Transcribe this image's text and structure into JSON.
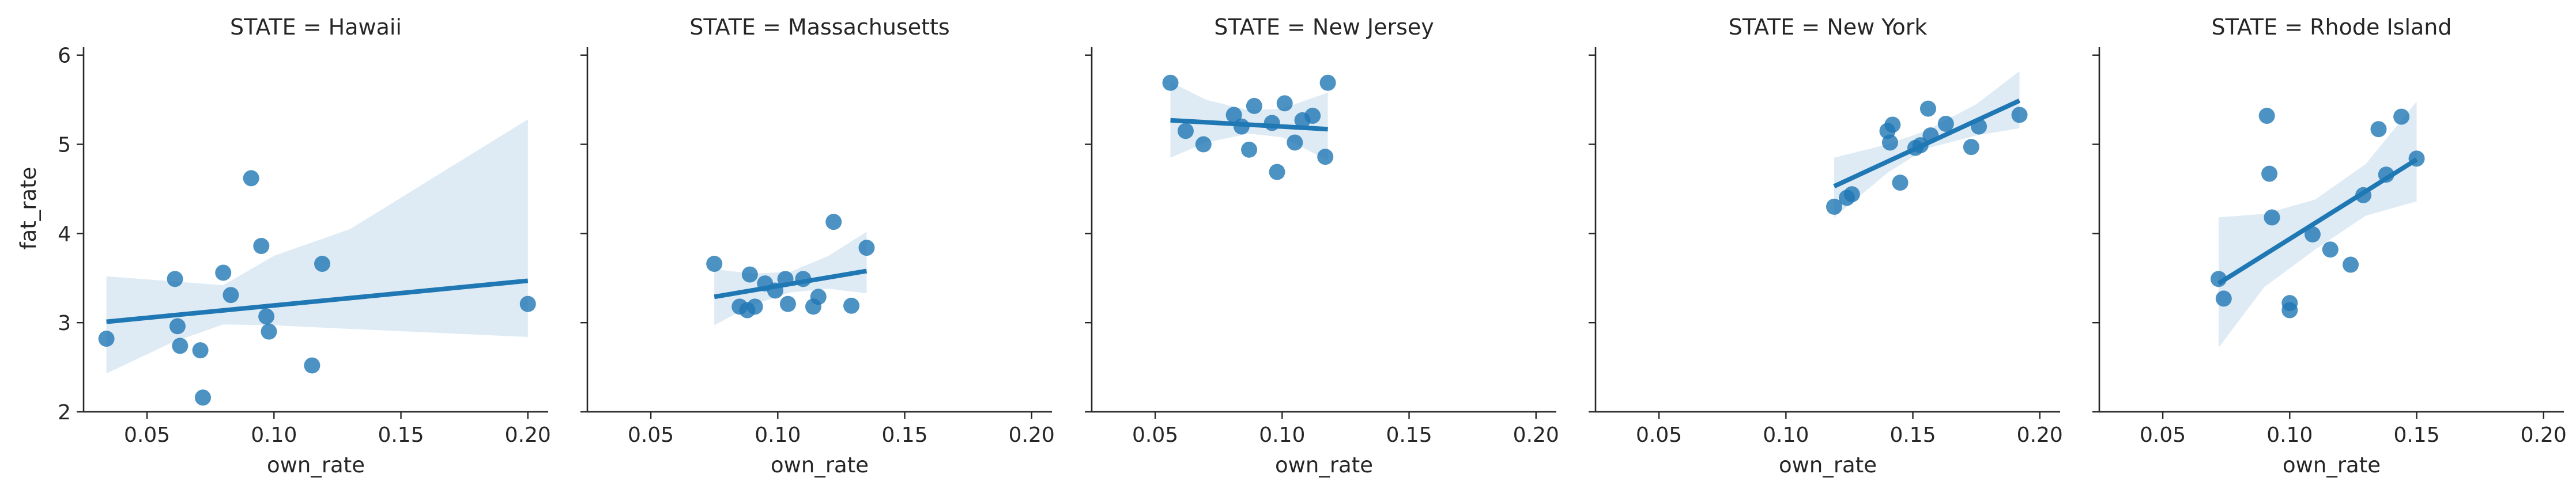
{
  "chart_data": {
    "type": "scatter",
    "subtype": "facet-grid-regression",
    "shared_ylabel": "fat_rate",
    "shared_xlabel": "own_rate",
    "xlim": [
      0.025,
      0.208
    ],
    "ylim": [
      2.0,
      6.05
    ],
    "xticks": [
      0.05,
      0.1,
      0.15,
      0.2
    ],
    "xtick_labels": [
      "0.05",
      "0.10",
      "0.15",
      "0.20"
    ],
    "yticks": [
      2,
      3,
      4,
      5,
      6
    ],
    "ytick_labels": [
      "2",
      "3",
      "4",
      "5",
      "6"
    ],
    "grid": false,
    "colors": {
      "points": "#1f77b4",
      "line": "#1f77b4",
      "band": "#1f77b4"
    },
    "facets": [
      {
        "title": "STATE = Hawaii",
        "points": [
          [
            0.034,
            2.82
          ],
          [
            0.061,
            3.49
          ],
          [
            0.062,
            2.96
          ],
          [
            0.063,
            2.74
          ],
          [
            0.071,
            2.69
          ],
          [
            0.072,
            2.16
          ],
          [
            0.08,
            3.56
          ],
          [
            0.083,
            3.31
          ],
          [
            0.091,
            4.62
          ],
          [
            0.095,
            3.86
          ],
          [
            0.097,
            3.07
          ],
          [
            0.098,
            2.9
          ],
          [
            0.115,
            2.52
          ],
          [
            0.119,
            3.66
          ],
          [
            0.2,
            3.21
          ]
        ],
        "fit": {
          "x": [
            0.034,
            0.2
          ],
          "y": [
            3.01,
            3.47
          ]
        },
        "ci_upper": [
          [
            0.034,
            3.52
          ],
          [
            0.08,
            3.42
          ],
          [
            0.1,
            3.75
          ],
          [
            0.13,
            4.05
          ],
          [
            0.2,
            5.28
          ]
        ],
        "ci_lower": [
          [
            0.034,
            2.43
          ],
          [
            0.06,
            2.78
          ],
          [
            0.08,
            2.98
          ],
          [
            0.1,
            2.97
          ],
          [
            0.13,
            2.93
          ],
          [
            0.2,
            2.84
          ]
        ]
      },
      {
        "title": "STATE = Massachusetts",
        "points": [
          [
            0.075,
            3.66
          ],
          [
            0.085,
            3.18
          ],
          [
            0.088,
            3.14
          ],
          [
            0.089,
            3.54
          ],
          [
            0.091,
            3.18
          ],
          [
            0.095,
            3.44
          ],
          [
            0.099,
            3.36
          ],
          [
            0.103,
            3.49
          ],
          [
            0.104,
            3.21
          ],
          [
            0.11,
            3.49
          ],
          [
            0.114,
            3.18
          ],
          [
            0.116,
            3.29
          ],
          [
            0.122,
            4.13
          ],
          [
            0.129,
            3.19
          ],
          [
            0.135,
            3.84
          ]
        ],
        "fit": {
          "x": [
            0.075,
            0.135
          ],
          "y": [
            3.29,
            3.58
          ]
        },
        "ci_upper": [
          [
            0.075,
            3.6
          ],
          [
            0.09,
            3.55
          ],
          [
            0.105,
            3.57
          ],
          [
            0.12,
            3.75
          ],
          [
            0.135,
            4.02
          ]
        ],
        "ci_lower": [
          [
            0.075,
            2.97
          ],
          [
            0.09,
            3.2
          ],
          [
            0.105,
            3.34
          ],
          [
            0.12,
            3.38
          ],
          [
            0.135,
            3.33
          ]
        ]
      },
      {
        "title": "STATE = New Jersey",
        "points": [
          [
            0.056,
            5.69
          ],
          [
            0.062,
            5.15
          ],
          [
            0.069,
            5.0
          ],
          [
            0.081,
            5.33
          ],
          [
            0.084,
            5.2
          ],
          [
            0.087,
            4.94
          ],
          [
            0.089,
            5.43
          ],
          [
            0.096,
            5.24
          ],
          [
            0.098,
            4.69
          ],
          [
            0.101,
            5.46
          ],
          [
            0.105,
            5.02
          ],
          [
            0.108,
            5.27
          ],
          [
            0.112,
            5.32
          ],
          [
            0.117,
            4.86
          ],
          [
            0.118,
            5.69
          ]
        ],
        "fit": {
          "x": [
            0.056,
            0.118
          ],
          "y": [
            5.27,
            5.17
          ]
        },
        "ci_upper": [
          [
            0.056,
            5.7
          ],
          [
            0.07,
            5.5
          ],
          [
            0.087,
            5.38
          ],
          [
            0.1,
            5.4
          ],
          [
            0.118,
            5.58
          ]
        ],
        "ci_lower": [
          [
            0.056,
            4.85
          ],
          [
            0.07,
            5.02
          ],
          [
            0.087,
            5.12
          ],
          [
            0.1,
            5.08
          ],
          [
            0.118,
            4.82
          ]
        ]
      },
      {
        "title": "STATE = New York",
        "points": [
          [
            0.119,
            4.3
          ],
          [
            0.124,
            4.4
          ],
          [
            0.126,
            4.44
          ],
          [
            0.14,
            5.15
          ],
          [
            0.141,
            5.02
          ],
          [
            0.142,
            5.22
          ],
          [
            0.145,
            4.57
          ],
          [
            0.151,
            4.96
          ],
          [
            0.153,
            4.99
          ],
          [
            0.156,
            5.4
          ],
          [
            0.157,
            5.1
          ],
          [
            0.163,
            5.23
          ],
          [
            0.173,
            4.97
          ],
          [
            0.176,
            5.2
          ],
          [
            0.192,
            5.33
          ]
        ],
        "fit": {
          "x": [
            0.119,
            0.192
          ],
          "y": [
            4.53,
            5.49
          ]
        },
        "ci_upper": [
          [
            0.119,
            4.85
          ],
          [
            0.14,
            5.0
          ],
          [
            0.155,
            5.15
          ],
          [
            0.175,
            5.45
          ],
          [
            0.192,
            5.82
          ]
        ],
        "ci_lower": [
          [
            0.119,
            4.18
          ],
          [
            0.14,
            4.68
          ],
          [
            0.155,
            4.95
          ],
          [
            0.175,
            5.1
          ],
          [
            0.192,
            5.18
          ]
        ]
      },
      {
        "title": "STATE = Rhode Island",
        "points": [
          [
            0.072,
            3.49
          ],
          [
            0.074,
            3.27
          ],
          [
            0.091,
            5.32
          ],
          [
            0.092,
            4.67
          ],
          [
            0.093,
            4.18
          ],
          [
            0.1,
            3.22
          ],
          [
            0.1,
            3.14
          ],
          [
            0.109,
            3.99
          ],
          [
            0.116,
            3.82
          ],
          [
            0.124,
            3.65
          ],
          [
            0.129,
            4.43
          ],
          [
            0.135,
            5.17
          ],
          [
            0.138,
            4.66
          ],
          [
            0.144,
            5.31
          ],
          [
            0.15,
            4.84
          ]
        ],
        "fit": {
          "x": [
            0.072,
            0.15
          ],
          "y": [
            3.44,
            4.83
          ]
        },
        "ci_upper": [
          [
            0.072,
            4.18
          ],
          [
            0.09,
            4.22
          ],
          [
            0.11,
            4.38
          ],
          [
            0.13,
            4.78
          ],
          [
            0.15,
            5.48
          ]
        ],
        "ci_lower": [
          [
            0.072,
            2.72
          ],
          [
            0.09,
            3.4
          ],
          [
            0.11,
            3.82
          ],
          [
            0.13,
            4.2
          ],
          [
            0.15,
            4.36
          ]
        ]
      }
    ]
  }
}
